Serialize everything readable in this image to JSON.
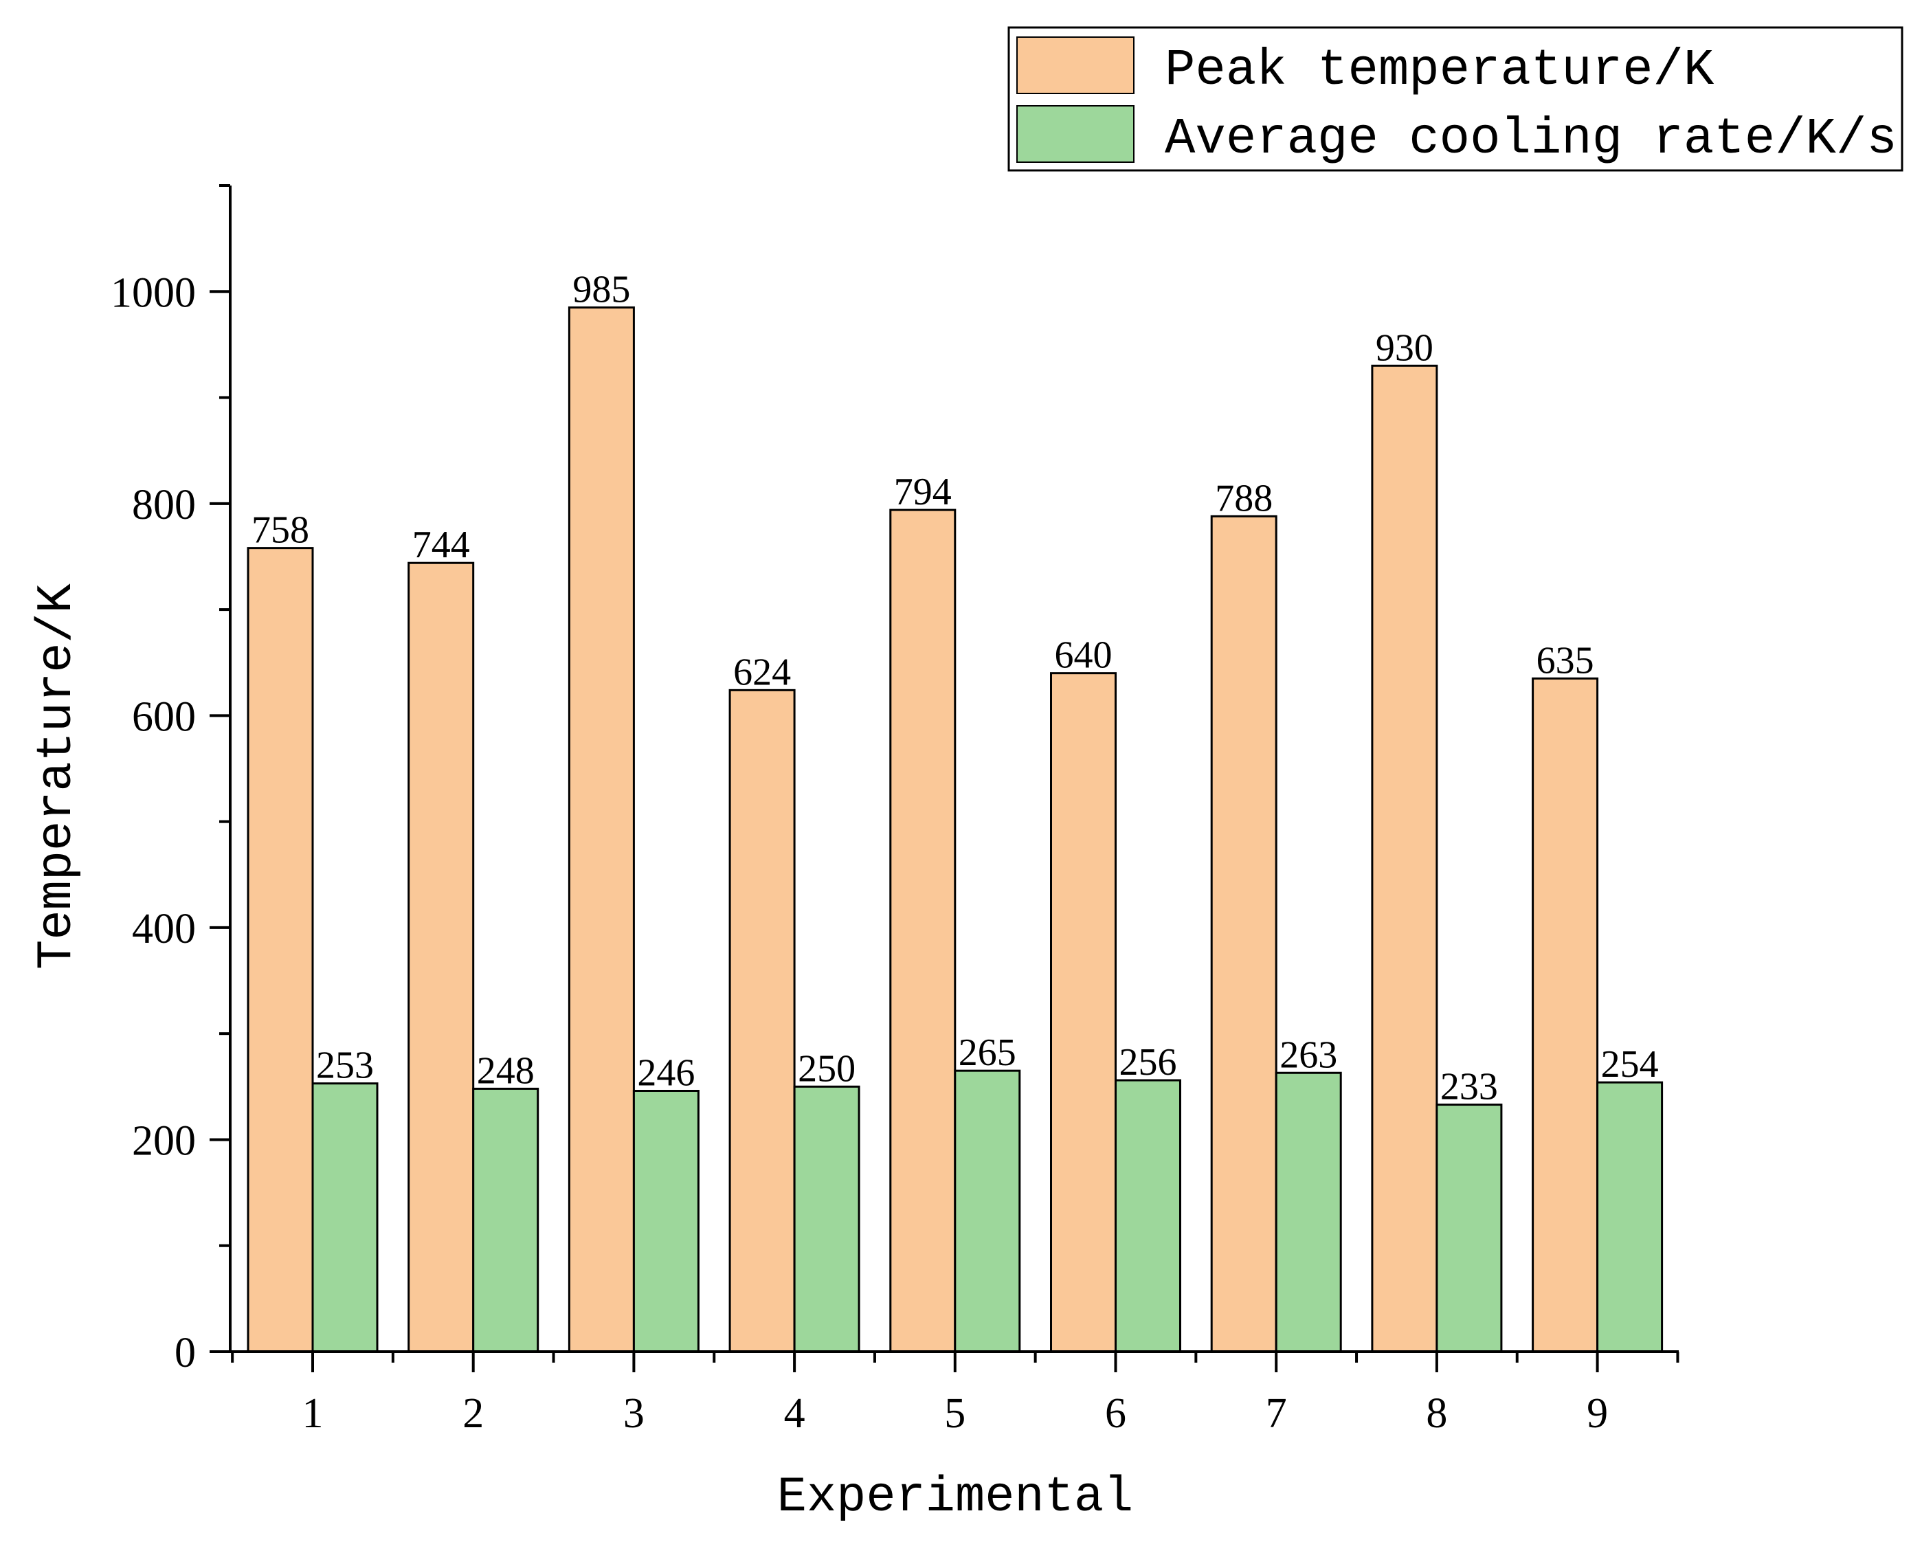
{
  "chart_data": {
    "type": "bar",
    "title": "",
    "xlabel": "Experimental",
    "ylabel": "Temperature/K",
    "categories": [
      "1",
      "2",
      "3",
      "4",
      "5",
      "6",
      "7",
      "8",
      "9"
    ],
    "ylim": [
      0,
      1100
    ],
    "yticks": [
      0,
      200,
      400,
      600,
      800,
      1000
    ],
    "grid": false,
    "legend_position": "top-right",
    "series": [
      {
        "name": "Peak temperature/K",
        "color": "#FAC898",
        "values": [
          758,
          744,
          985,
          624,
          794,
          640,
          788,
          930,
          635
        ]
      },
      {
        "name": "Average cooling rate/K/s",
        "color": "#9DD79B",
        "values": [
          253,
          248,
          246,
          250,
          265,
          256,
          263,
          233,
          254
        ]
      }
    ]
  }
}
